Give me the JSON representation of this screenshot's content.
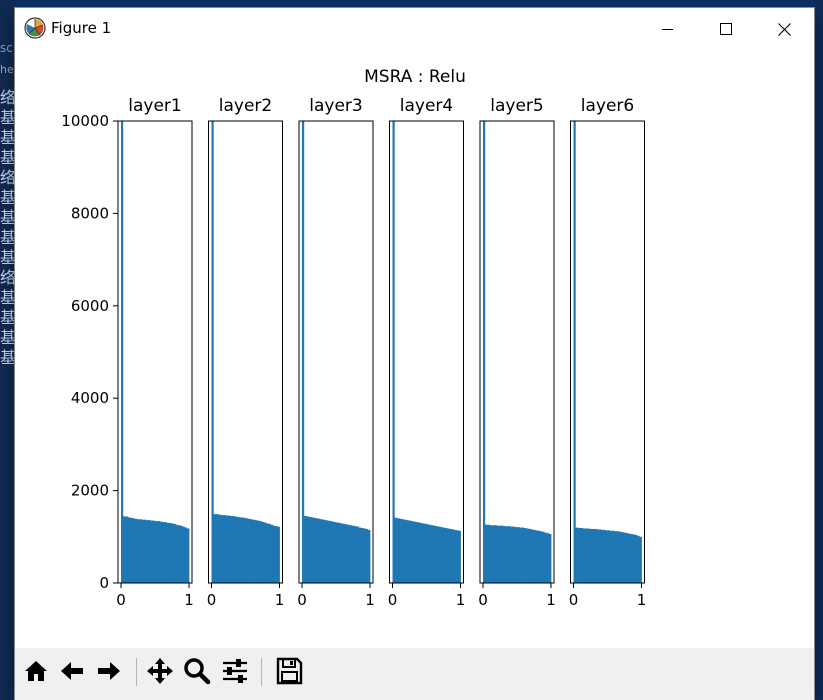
{
  "window": {
    "title": "Figure 1",
    "controls": [
      "minimize-icon",
      "maximize-icon",
      "close-icon"
    ]
  },
  "background": {
    "left_chars": [
      "络",
      "基",
      "基",
      "基",
      "络",
      "基",
      "基",
      "基",
      "基",
      "络",
      "基",
      "基",
      "基",
      "基"
    ],
    "snippet_top": "sc",
    "snippet_second": "he"
  },
  "toolbar": {
    "buttons": [
      "home-icon",
      "back-icon",
      "forward-icon",
      "pan-icon",
      "zoom-icon",
      "subplots-icon",
      "save-icon"
    ]
  },
  "chart_data": {
    "type": "bar",
    "title": "MSRA : Relu",
    "ylim": [
      0,
      10000
    ],
    "xlim": [
      0,
      1
    ],
    "yticks": [
      0,
      2000,
      4000,
      6000,
      8000,
      10000
    ],
    "xticks": [
      0,
      1
    ],
    "bins": 30,
    "bar_color": "#1f77b4",
    "subplots": [
      {
        "title": "layer1",
        "spike": 10000,
        "values": [
          1460,
          1440,
          1440,
          1420,
          1410,
          1400,
          1390,
          1380,
          1380,
          1370,
          1370,
          1360,
          1360,
          1350,
          1350,
          1340,
          1340,
          1330,
          1320,
          1320,
          1300,
          1300,
          1290,
          1280,
          1260,
          1250,
          1240,
          1220,
          1200,
          1180
        ]
      },
      {
        "title": "layer2",
        "spike": 10000,
        "values": [
          1500,
          1490,
          1490,
          1480,
          1470,
          1470,
          1460,
          1460,
          1450,
          1450,
          1440,
          1430,
          1420,
          1420,
          1410,
          1400,
          1390,
          1380,
          1370,
          1360,
          1350,
          1340,
          1320,
          1310,
          1290,
          1280,
          1260,
          1240,
          1230,
          1220
        ]
      },
      {
        "title": "layer3",
        "spike": 10000,
        "values": [
          1460,
          1450,
          1440,
          1430,
          1420,
          1410,
          1400,
          1390,
          1380,
          1370,
          1360,
          1350,
          1340,
          1330,
          1320,
          1310,
          1300,
          1290,
          1280,
          1270,
          1260,
          1250,
          1240,
          1230,
          1220,
          1200,
          1190,
          1180,
          1170,
          1150
        ]
      },
      {
        "title": "layer4",
        "spike": 10000,
        "values": [
          1420,
          1410,
          1400,
          1390,
          1380,
          1370,
          1360,
          1350,
          1340,
          1330,
          1320,
          1310,
          1300,
          1290,
          1280,
          1270,
          1260,
          1250,
          1240,
          1230,
          1220,
          1210,
          1200,
          1190,
          1180,
          1170,
          1160,
          1150,
          1140,
          1130
        ]
      },
      {
        "title": "layer5",
        "spike": 10000,
        "values": [
          1270,
          1260,
          1260,
          1250,
          1250,
          1250,
          1240,
          1240,
          1240,
          1230,
          1230,
          1230,
          1220,
          1220,
          1210,
          1210,
          1200,
          1200,
          1190,
          1180,
          1170,
          1160,
          1150,
          1140,
          1130,
          1120,
          1110,
          1090,
          1080,
          1060
        ]
      },
      {
        "title": "layer6",
        "spike": 10000,
        "values": [
          1200,
          1200,
          1190,
          1190,
          1180,
          1180,
          1180,
          1170,
          1170,
          1170,
          1160,
          1160,
          1150,
          1150,
          1140,
          1140,
          1130,
          1130,
          1120,
          1120,
          1110,
          1100,
          1090,
          1080,
          1070,
          1060,
          1050,
          1040,
          1020,
          1000
        ]
      }
    ]
  }
}
